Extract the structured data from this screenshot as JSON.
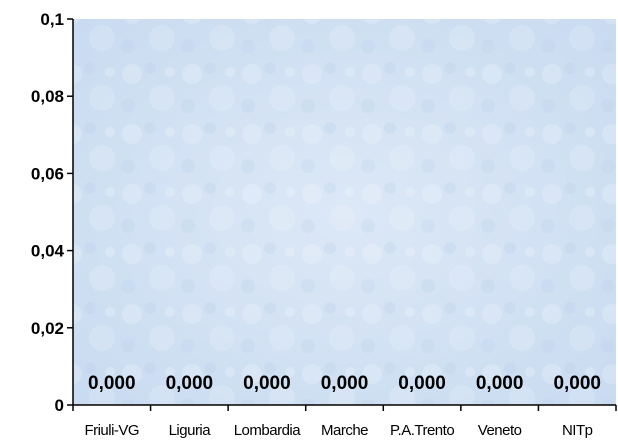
{
  "chart_data": {
    "type": "bar",
    "title": "",
    "xlabel": "",
    "ylabel": "",
    "categories": [
      "Friuli-VG",
      "Liguria",
      "Lombardia",
      "Marche",
      "P.A.Trento",
      "Veneto",
      "NITp"
    ],
    "values": [
      0,
      0,
      0,
      0,
      0,
      0,
      0
    ],
    "data_labels": [
      "0,000",
      "0,000",
      "0,000",
      "0,000",
      "0,000",
      "0,000",
      "0,000"
    ],
    "ylim": [
      0,
      0.1
    ],
    "yticks": [
      0,
      0.02,
      0.04,
      0.06,
      0.08,
      0.1
    ],
    "ytick_labels": [
      "0",
      "0,02",
      "0,04",
      "0,06",
      "0,08",
      "0,1"
    ],
    "grid": false,
    "legend": "none",
    "colors": {
      "plot_background": "#cfe0f4",
      "axis": "#000000"
    }
  }
}
